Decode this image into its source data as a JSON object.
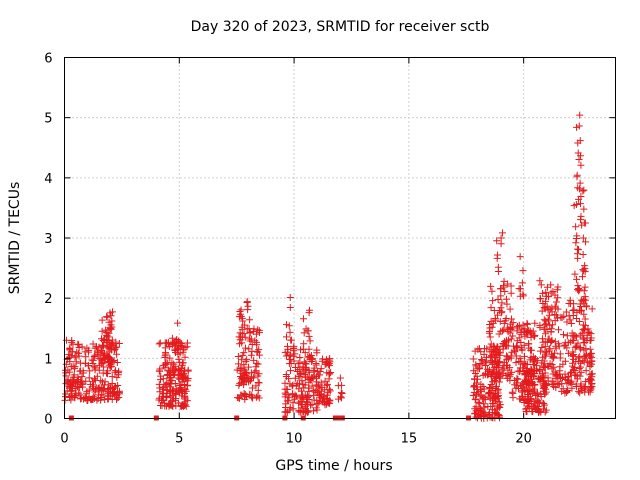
{
  "chart_data": {
    "type": "scatter",
    "title": "Day 320 of 2023, SRMTID for receiver sctb",
    "xlabel": "GPS time / hours",
    "ylabel": "SRMTID / TECUs",
    "xlim": [
      0,
      24
    ],
    "ylim": [
      0,
      6
    ],
    "xticks": [
      0,
      5,
      10,
      15,
      20
    ],
    "yticks": [
      0,
      1,
      2,
      3,
      4,
      5,
      6
    ],
    "grid": true,
    "marker": "+",
    "color": "#e41a1c",
    "clusters": [
      {
        "x0": 0.0,
        "x1": 2.4,
        "ymin": 0.3,
        "ymax": 1.3,
        "n": 260
      },
      {
        "x0": 1.6,
        "x1": 2.1,
        "ymin": 0.9,
        "ymax": 1.8,
        "n": 50
      },
      {
        "x0": 4.1,
        "x1": 5.4,
        "ymin": 0.2,
        "ymax": 1.3,
        "n": 200
      },
      {
        "x0": 4.7,
        "x1": 5.0,
        "ymin": 1.2,
        "ymax": 1.6,
        "n": 8
      },
      {
        "x0": 7.5,
        "x1": 8.5,
        "ymin": 0.3,
        "ymax": 1.5,
        "n": 110
      },
      {
        "x0": 7.6,
        "x1": 8.1,
        "ymin": 1.5,
        "ymax": 2.0,
        "n": 14
      },
      {
        "x0": 9.6,
        "x1": 11.0,
        "ymin": 0.1,
        "ymax": 1.2,
        "n": 170
      },
      {
        "x0": 9.6,
        "x1": 9.9,
        "ymin": 1.3,
        "ymax": 2.1,
        "n": 8
      },
      {
        "x0": 10.4,
        "x1": 10.7,
        "ymin": 1.2,
        "ymax": 1.8,
        "n": 10
      },
      {
        "x0": 11.0,
        "x1": 11.6,
        "ymin": 0.2,
        "ymax": 1.0,
        "n": 60
      },
      {
        "x0": 11.9,
        "x1": 12.1,
        "ymin": 0.3,
        "ymax": 0.8,
        "n": 8
      },
      {
        "x0": 17.8,
        "x1": 19.0,
        "ymin": 0.0,
        "ymax": 1.2,
        "n": 180
      },
      {
        "x0": 18.5,
        "x1": 19.5,
        "ymin": 0.6,
        "ymax": 2.3,
        "n": 120
      },
      {
        "x0": 18.8,
        "x1": 19.1,
        "ymin": 2.4,
        "ymax": 3.1,
        "n": 8
      },
      {
        "x0": 19.5,
        "x1": 20.5,
        "ymin": 0.3,
        "ymax": 1.6,
        "n": 120
      },
      {
        "x0": 19.8,
        "x1": 20.0,
        "ymin": 2.0,
        "ymax": 2.8,
        "n": 8
      },
      {
        "x0": 20.0,
        "x1": 21.0,
        "ymin": 0.1,
        "ymax": 1.0,
        "n": 120
      },
      {
        "x0": 20.7,
        "x1": 21.6,
        "ymin": 0.5,
        "ymax": 2.3,
        "n": 130
      },
      {
        "x0": 21.6,
        "x1": 23.0,
        "ymin": 0.4,
        "ymax": 2.0,
        "n": 180
      },
      {
        "x0": 22.2,
        "x1": 22.7,
        "ymin": 2.0,
        "ymax": 3.8,
        "n": 40
      },
      {
        "x0": 22.3,
        "x1": 22.5,
        "ymin": 3.8,
        "ymax": 5.05,
        "n": 14
      }
    ],
    "zero_markers": [
      0.3,
      4.0,
      7.5,
      9.6,
      10.4,
      11.8,
      11.9,
      12.0,
      12.1,
      17.6
    ]
  }
}
